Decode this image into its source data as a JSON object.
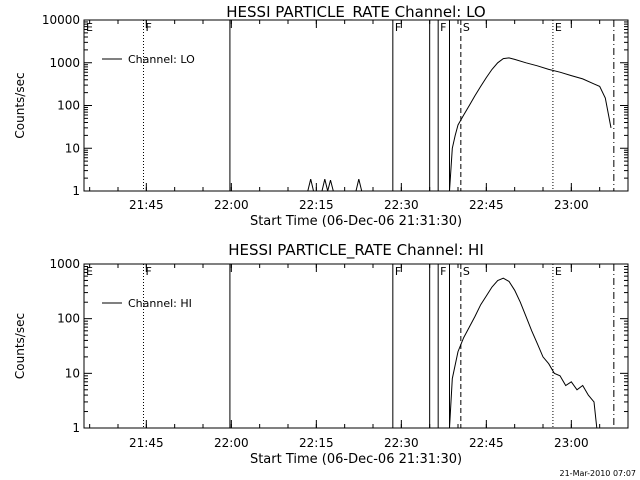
{
  "footer_stamp": "21-Mar-2010 07:07",
  "chart_data": [
    {
      "type": "line",
      "title": "HESSI PARTICLE_RATE Channel: LO",
      "xlabel": "Start Time (06-Dec-06 21:31:30)",
      "ylabel": "Counts/sec",
      "yscale": "log",
      "xlim": [
        "21:34",
        "23:10"
      ],
      "ylim": [
        1,
        10000
      ],
      "x_ticks": [
        "21:45",
        "22:00",
        "22:15",
        "22:30",
        "22:45",
        "23:00"
      ],
      "y_ticks": [
        {
          "value": 1,
          "label": "1"
        },
        {
          "value": 10,
          "label": "10"
        },
        {
          "value": 100,
          "label": "100"
        },
        {
          "value": 1000,
          "label": "1000"
        },
        {
          "value": 10000,
          "label": "10000"
        }
      ],
      "legend": {
        "position": "top-left",
        "entries": [
          "Channel: LO"
        ]
      },
      "flag_markers": [
        {
          "time": "21:34:00",
          "label": "E",
          "style": "dotted"
        },
        {
          "time": "21:44:30",
          "label": "F",
          "style": "dotted"
        },
        {
          "time": "21:59:45",
          "label": "",
          "style": "solid"
        },
        {
          "time": "22:28:30",
          "label": "F",
          "style": "solid"
        },
        {
          "time": "22:35:00",
          "label": "",
          "style": "solid"
        },
        {
          "time": "22:36:30",
          "label": "F",
          "style": "solid"
        },
        {
          "time": "22:38:30",
          "label": "",
          "style": "solid"
        },
        {
          "time": "22:40:30",
          "label": "S",
          "style": "dashed"
        },
        {
          "time": "22:56:45",
          "label": "E",
          "style": "dotted"
        },
        {
          "time": "23:07:30",
          "label": "",
          "style": "dashdot"
        }
      ],
      "series": [
        {
          "x": [
            "22:13:30",
            "22:14:00",
            "22:14:30",
            "22:16:00",
            "22:16:30",
            "22:17:00",
            "22:17:30",
            "22:18:00",
            "22:22:00",
            "22:22:30",
            "22:23:00"
          ],
          "y": [
            1,
            1.9,
            1,
            1,
            1.9,
            1,
            1.8,
            1,
            1,
            1.9,
            1
          ]
        },
        {
          "x": [
            "22:38:30",
            "22:39:00",
            "22:39:30",
            "22:40:00",
            "22:41:00",
            "22:42:00",
            "22:43:00",
            "22:44:00",
            "22:45:00",
            "22:46:00",
            "22:47:00",
            "22:48:00",
            "22:49:00",
            "22:50:00",
            "22:52:00",
            "22:54:00",
            "22:56:00",
            "22:58:00",
            "23:00:00",
            "23:02:00",
            "23:04:00",
            "23:05:00",
            "23:06:00",
            "23:07:00"
          ],
          "y": [
            1,
            10,
            20,
            35,
            60,
            100,
            170,
            280,
            450,
            700,
            1000,
            1250,
            1300,
            1200,
            1000,
            850,
            700,
            600,
            500,
            420,
            320,
            280,
            150,
            30
          ]
        }
      ]
    },
    {
      "type": "line",
      "title": "HESSI PARTICLE_RATE Channel: HI",
      "xlabel": "Start Time (06-Dec-06 21:31:30)",
      "ylabel": "Counts/sec",
      "yscale": "log",
      "xlim": [
        "21:34",
        "23:10"
      ],
      "ylim": [
        1,
        1000
      ],
      "x_ticks": [
        "21:45",
        "22:00",
        "22:15",
        "22:30",
        "22:45",
        "23:00"
      ],
      "y_ticks": [
        {
          "value": 1,
          "label": "1"
        },
        {
          "value": 10,
          "label": "10"
        },
        {
          "value": 100,
          "label": "100"
        },
        {
          "value": 1000,
          "label": "1000"
        }
      ],
      "legend": {
        "position": "top-left",
        "entries": [
          "Channel: HI"
        ]
      },
      "flag_markers": [
        {
          "time": "21:34:00",
          "label": "E",
          "style": "dotted"
        },
        {
          "time": "21:44:30",
          "label": "F",
          "style": "dotted"
        },
        {
          "time": "21:59:45",
          "label": "",
          "style": "solid"
        },
        {
          "time": "22:28:30",
          "label": "F",
          "style": "solid"
        },
        {
          "time": "22:35:00",
          "label": "",
          "style": "solid"
        },
        {
          "time": "22:36:30",
          "label": "F",
          "style": "solid"
        },
        {
          "time": "22:38:30",
          "label": "",
          "style": "solid"
        },
        {
          "time": "22:40:30",
          "label": "S",
          "style": "dashed"
        },
        {
          "time": "22:56:45",
          "label": "E",
          "style": "dotted"
        },
        {
          "time": "23:07:30",
          "label": "",
          "style": "dashdot"
        }
      ],
      "series": [
        {
          "x": [
            "22:38:30",
            "22:39:00",
            "22:40:00",
            "22:41:00",
            "22:42:00",
            "22:43:00",
            "22:44:00",
            "22:45:00",
            "22:46:00",
            "22:47:00",
            "22:48:00",
            "22:49:00",
            "22:50:00",
            "22:51:00",
            "22:52:00",
            "22:53:00",
            "22:54:00",
            "22:55:00",
            "22:56:00",
            "22:57:00",
            "22:58:00",
            "22:59:00",
            "23:00:00",
            "23:01:00",
            "23:02:00",
            "23:03:00",
            "23:04:00",
            "23:04:30"
          ],
          "y": [
            1,
            8,
            25,
            45,
            70,
            110,
            180,
            260,
            380,
            500,
            550,
            480,
            330,
            200,
            110,
            60,
            35,
            20,
            15,
            10,
            9,
            6,
            7,
            5,
            6,
            4,
            3,
            1
          ]
        }
      ]
    }
  ]
}
